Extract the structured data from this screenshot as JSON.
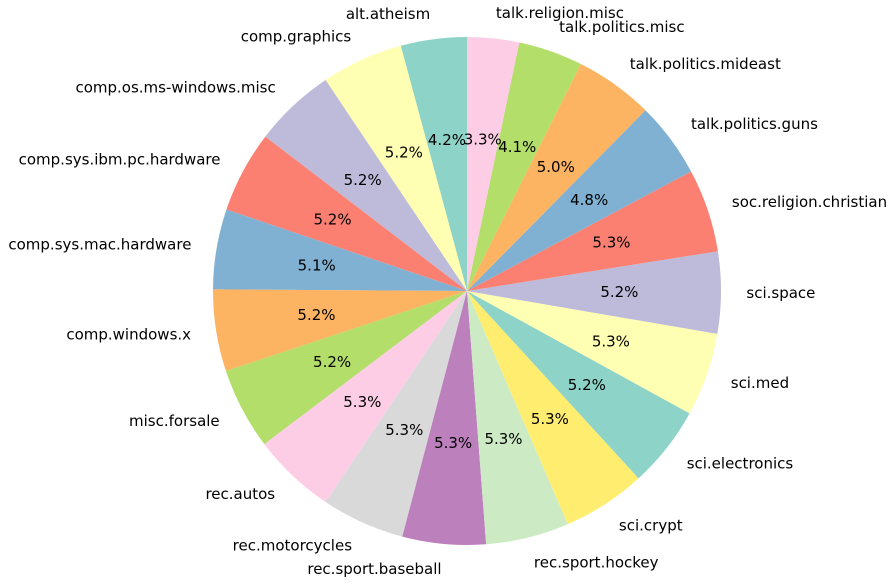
{
  "chart_data": {
    "type": "pie",
    "start": "top",
    "direction": "counterclockwise",
    "slices": [
      {
        "label": "alt.atheism",
        "value": 4.2,
        "pct_label": "4.2%",
        "color": "#8dd3c7"
      },
      {
        "label": "comp.graphics",
        "value": 5.2,
        "pct_label": "5.2%",
        "color": "#ffffb3"
      },
      {
        "label": "comp.os.ms-windows.misc",
        "value": 5.2,
        "pct_label": "5.2%",
        "color": "#bebada"
      },
      {
        "label": "comp.sys.ibm.pc.hardware",
        "value": 5.2,
        "pct_label": "5.2%",
        "color": "#fb8072"
      },
      {
        "label": "comp.sys.mac.hardware",
        "value": 5.1,
        "pct_label": "5.1%",
        "color": "#80b1d3"
      },
      {
        "label": "comp.windows.x",
        "value": 5.2,
        "pct_label": "5.2%",
        "color": "#fdb462"
      },
      {
        "label": "misc.forsale",
        "value": 5.2,
        "pct_label": "5.2%",
        "color": "#b3de69"
      },
      {
        "label": "rec.autos",
        "value": 5.3,
        "pct_label": "5.3%",
        "color": "#fccde5"
      },
      {
        "label": "rec.motorcycles",
        "value": 5.3,
        "pct_label": "5.3%",
        "color": "#d9d9d9"
      },
      {
        "label": "rec.sport.baseball",
        "value": 5.3,
        "pct_label": "5.3%",
        "color": "#bc80bd"
      },
      {
        "label": "rec.sport.hockey",
        "value": 5.3,
        "pct_label": "5.3%",
        "color": "#ccebc5"
      },
      {
        "label": "sci.crypt",
        "value": 5.3,
        "pct_label": "5.3%",
        "color": "#ffed6f"
      },
      {
        "label": "sci.electronics",
        "value": 5.2,
        "pct_label": "5.2%",
        "color": "#8dd3c7"
      },
      {
        "label": "sci.med",
        "value": 5.3,
        "pct_label": "5.3%",
        "color": "#ffffb3"
      },
      {
        "label": "sci.space",
        "value": 5.2,
        "pct_label": "5.2%",
        "color": "#bebada"
      },
      {
        "label": "soc.religion.christian",
        "value": 5.3,
        "pct_label": "5.3%",
        "color": "#fb8072"
      },
      {
        "label": "talk.politics.guns",
        "value": 4.8,
        "pct_label": "4.8%",
        "color": "#80b1d3"
      },
      {
        "label": "talk.politics.mideast",
        "value": 5.0,
        "pct_label": "5.0%",
        "color": "#fdb462"
      },
      {
        "label": "talk.politics.misc",
        "value": 4.1,
        "pct_label": "4.1%",
        "color": "#b3de69"
      },
      {
        "label": "talk.religion.misc",
        "value": 3.3,
        "pct_label": "3.3%",
        "color": "#fccde5"
      }
    ]
  }
}
